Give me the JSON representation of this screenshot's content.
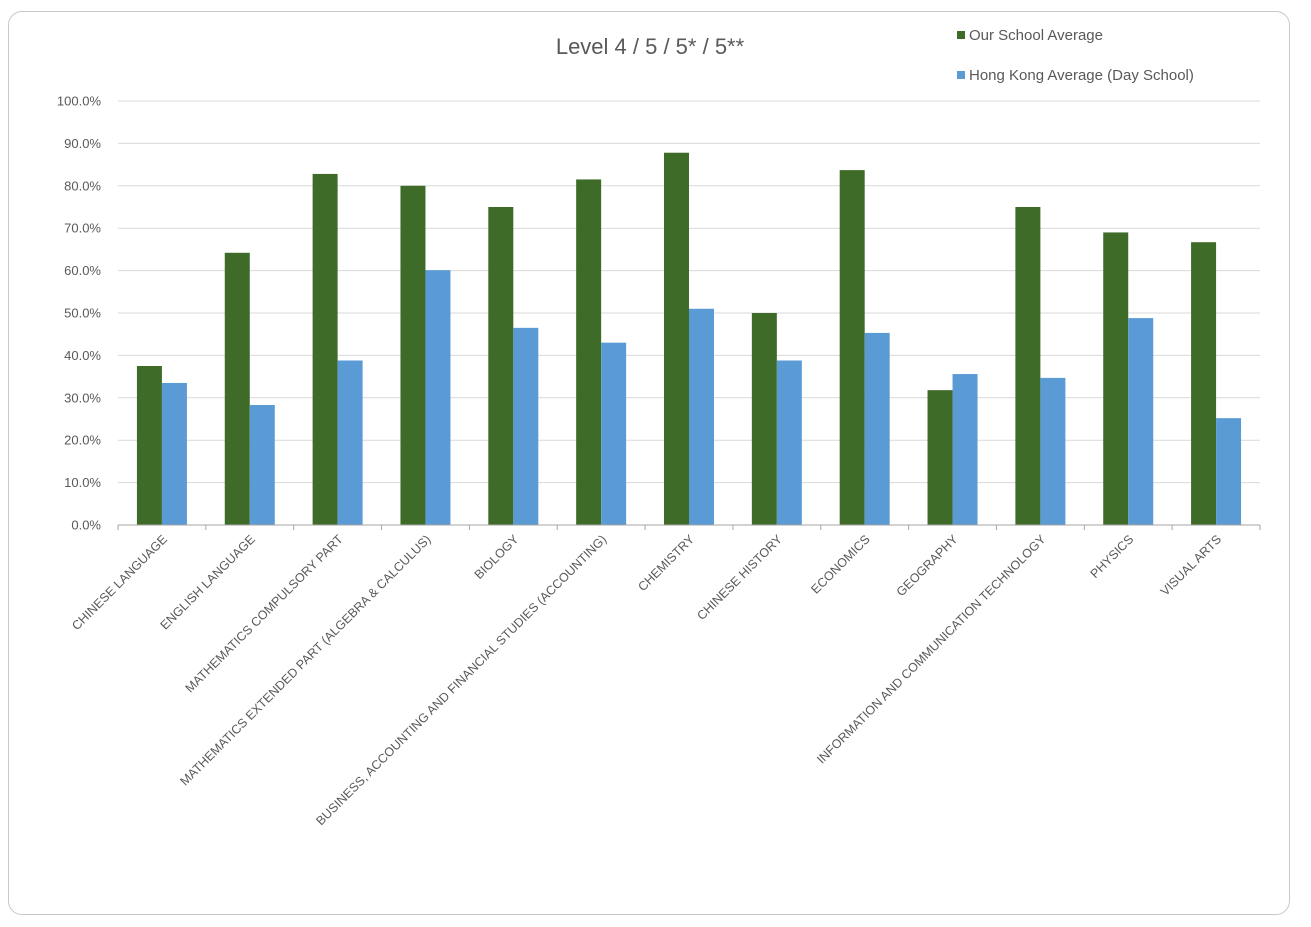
{
  "chart_data": {
    "type": "bar",
    "title": "Level 4 / 5 / 5* / 5**",
    "xlabel": "",
    "ylabel": "",
    "ylim": [
      0,
      100
    ],
    "y_tick_step": 10,
    "y_tick_format": "percent_one_decimal",
    "grid": true,
    "legend_position": "top-right",
    "categories": [
      "CHINESE LANGUAGE",
      "ENGLISH LANGUAGE",
      "MATHEMATICS COMPULSORY PART",
      "MATHEMATICS EXTENDED PART (ALGEBRA & CALCULUS)",
      "BIOLOGY",
      "BUSINESS, ACCOUNTING AND FINANCIAL STUDIES (ACCOUNTING)",
      "CHEMISTRY",
      "CHINESE HISTORY",
      "ECONOMICS",
      "GEOGRAPHY",
      "INFORMATION AND COMMUNICATION TECHNOLOGY",
      "PHYSICS",
      "VISUAL ARTS"
    ],
    "series": [
      {
        "name": "Our School Average",
        "color": "#3e6b27",
        "values": [
          37.5,
          64.2,
          82.8,
          80.0,
          75.0,
          81.5,
          87.8,
          50.0,
          83.7,
          31.8,
          75.0,
          69.0,
          66.7
        ]
      },
      {
        "name": "Hong Kong Average (Day School)",
        "color": "#5b9bd5",
        "values": [
          33.5,
          28.3,
          38.8,
          60.1,
          46.5,
          43.0,
          51.0,
          38.8,
          45.3,
          35.6,
          34.7,
          48.8,
          25.2
        ]
      }
    ]
  },
  "colors": {
    "grid": "#d9d9d9",
    "axis": "#a6a6a6",
    "text": "#595959"
  }
}
